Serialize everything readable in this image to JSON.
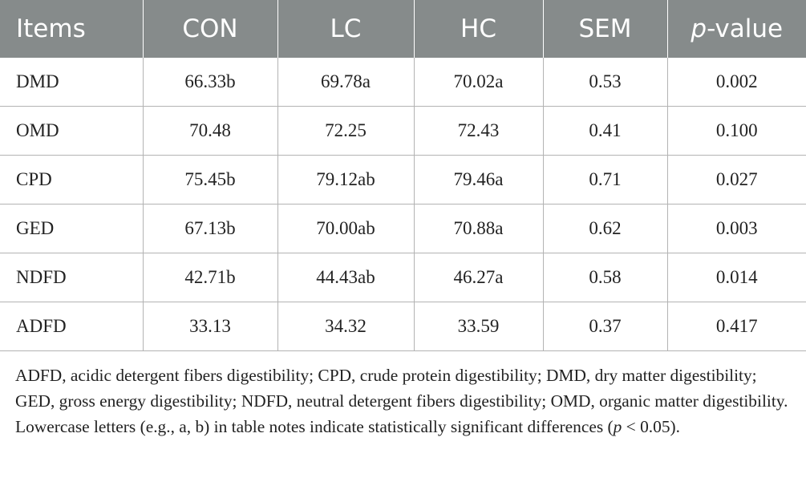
{
  "table": {
    "header": {
      "items": "Items",
      "con": "CON",
      "lc": "LC",
      "hc": "HC",
      "sem": "SEM",
      "p_italic": "p",
      "p_rest": "-value"
    },
    "rows": [
      [
        "DMD",
        "66.33b",
        "69.78a",
        "70.02a",
        "0.53",
        "0.002"
      ],
      [
        "OMD",
        "70.48",
        "72.25",
        "72.43",
        "0.41",
        "0.100"
      ],
      [
        "CPD",
        "75.45b",
        "79.12ab",
        "79.46a",
        "0.71",
        "0.027"
      ],
      [
        "GED",
        "67.13b",
        "70.00ab",
        "70.88a",
        "0.62",
        "0.003"
      ],
      [
        "NDFD",
        "42.71b",
        "44.43ab",
        "46.27a",
        "0.58",
        "0.014"
      ],
      [
        "ADFD",
        "33.13",
        "34.32",
        "33.59",
        "0.37",
        "0.417"
      ]
    ]
  },
  "footnote": {
    "text_main": "ADFD, acidic detergent fibers digestibility; CPD, crude protein digestibility; DMD, dry matter digestibility; GED, gross energy digestibility; NDFD, neutral detergent fibers digestibility; OMD, organic matter digestibility. Lowercase letters (e.g., a, b) in table notes indicate statistically significant differences (",
    "p_italic": "p",
    "text_end": " < 0.05)."
  }
}
